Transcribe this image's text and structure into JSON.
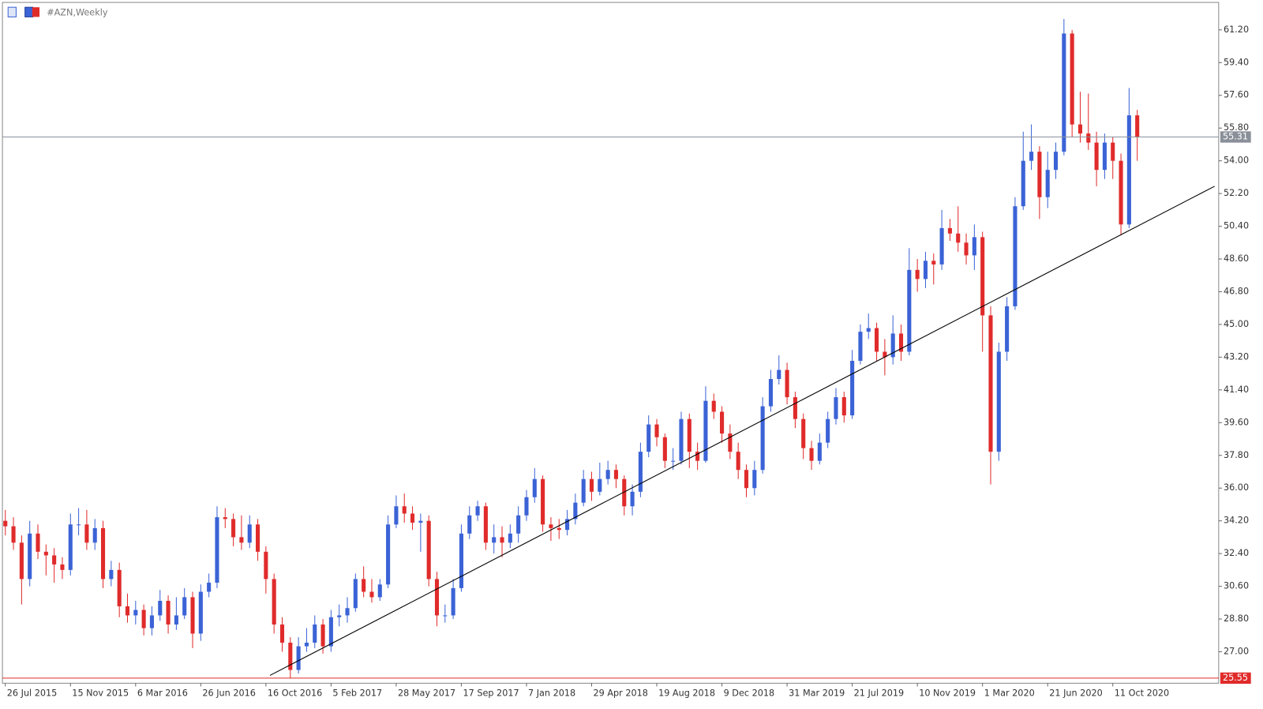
{
  "chart_data": {
    "type": "candlestick",
    "title": "#AZN,Weekly",
    "up_color": "#3b63d6",
    "down_color": "#e02b2b",
    "x": [
      "2015-07-26",
      "2015-08-09",
      "2015-08-23",
      "2015-09-06",
      "2015-09-20",
      "2015-10-04",
      "2015-10-18",
      "2015-11-01",
      "2015-11-15",
      "2015-11-29",
      "2015-12-13",
      "2015-12-27",
      "2016-01-10",
      "2016-01-24",
      "2016-02-07",
      "2016-02-21",
      "2016-03-06",
      "2016-03-20",
      "2016-04-03",
      "2016-04-17",
      "2016-05-01",
      "2016-05-15",
      "2016-05-29",
      "2016-06-12",
      "2016-06-26",
      "2016-07-10",
      "2016-07-24",
      "2016-08-07",
      "2016-08-21",
      "2016-09-04",
      "2016-09-18",
      "2016-10-02",
      "2016-10-16",
      "2016-10-30",
      "2016-11-13",
      "2016-11-27",
      "2016-12-11",
      "2016-12-25",
      "2017-01-08",
      "2017-01-22",
      "2017-02-05",
      "2017-02-19",
      "2017-03-05",
      "2017-03-19",
      "2017-04-02",
      "2017-04-16",
      "2017-04-30",
      "2017-05-14",
      "2017-05-28",
      "2017-06-11",
      "2017-06-25",
      "2017-07-09",
      "2017-07-23",
      "2017-08-06",
      "2017-08-20",
      "2017-09-03",
      "2017-09-17",
      "2017-10-01",
      "2017-10-15",
      "2017-10-29",
      "2017-11-12",
      "2017-11-26",
      "2017-12-10",
      "2017-12-24",
      "2018-01-07",
      "2018-01-21",
      "2018-02-04",
      "2018-02-18",
      "2018-03-04",
      "2018-03-18",
      "2018-04-01",
      "2018-04-15",
      "2018-04-29",
      "2018-05-13",
      "2018-05-27",
      "2018-06-10",
      "2018-06-24",
      "2018-07-08",
      "2018-07-22",
      "2018-08-05",
      "2018-08-19",
      "2018-09-02",
      "2018-09-16",
      "2018-09-30",
      "2018-10-14",
      "2018-10-28",
      "2018-11-11",
      "2018-11-25",
      "2018-12-09",
      "2018-12-23",
      "2019-01-06",
      "2019-01-20",
      "2019-02-03",
      "2019-02-17",
      "2019-03-03",
      "2019-03-17",
      "2019-03-31",
      "2019-04-14",
      "2019-04-28",
      "2019-05-12",
      "2019-05-26",
      "2019-06-09",
      "2019-06-23",
      "2019-07-07",
      "2019-07-21",
      "2019-08-04",
      "2019-08-18",
      "2019-09-01",
      "2019-09-15",
      "2019-09-29",
      "2019-10-13",
      "2019-10-27",
      "2019-11-10",
      "2019-11-24",
      "2019-12-08",
      "2019-12-22",
      "2020-01-05",
      "2020-01-19",
      "2020-02-02",
      "2020-02-16",
      "2020-03-01",
      "2020-03-15",
      "2020-03-29",
      "2020-04-12",
      "2020-04-26",
      "2020-05-10",
      "2020-05-24",
      "2020-06-07",
      "2020-06-21",
      "2020-07-05",
      "2020-07-19",
      "2020-08-02",
      "2020-08-16",
      "2020-08-30",
      "2020-09-13",
      "2020-09-27",
      "2020-10-11",
      "2020-10-25",
      "2020-11-08",
      "2020-11-22"
    ],
    "open": [
      34.2,
      33.9,
      33.0,
      31.0,
      33.5,
      32.5,
      32.3,
      31.8,
      31.5,
      34.0,
      34.0,
      33.0,
      33.8,
      31.0,
      31.5,
      29.5,
      29.0,
      29.3,
      28.3,
      29.0,
      29.8,
      28.5,
      29.0,
      30.0,
      28.0,
      30.3,
      30.8,
      34.4,
      34.3,
      33.3,
      33.0,
      34.0,
      32.5,
      31.0,
      28.5,
      27.5,
      26.0,
      27.3,
      27.5,
      28.5,
      27.3,
      28.9,
      29.0,
      29.4,
      31.0,
      30.3,
      30.0,
      30.7,
      34.0,
      35.0,
      34.6,
      34.1,
      34.2,
      31.0,
      29.0,
      29.0,
      30.5,
      33.5,
      34.5,
      35.0,
      33.0,
      33.3,
      33.0,
      33.5,
      34.5,
      35.5,
      36.5,
      34.0,
      33.8,
      33.7,
      34.3,
      35.2,
      36.5,
      35.8,
      36.5,
      37.0,
      36.5,
      35.0,
      35.8,
      38.0,
      39.5,
      38.8,
      37.5,
      37.5,
      39.8,
      38.0,
      37.5,
      40.8,
      40.2,
      39.0,
      38.0,
      37.0,
      36.0,
      37.0,
      40.5,
      42.0,
      42.5,
      41.0,
      39.8,
      38.2,
      37.5,
      38.5,
      39.8,
      41.0,
      40.0,
      43.0,
      44.6,
      44.8,
      43.5,
      43.2,
      44.5,
      43.5,
      48.0,
      47.5,
      48.5,
      48.3,
      50.3,
      50.0,
      49.5,
      48.8,
      49.8,
      45.5,
      38.0,
      43.5,
      46.0,
      51.5,
      54.0,
      54.5,
      52.0,
      53.5,
      54.5,
      61.0,
      56.0,
      55.5,
      55.0,
      53.5,
      55.0,
      54.0,
      50.5,
      56.5
    ],
    "high": [
      34.8,
      34.4,
      33.4,
      34.2,
      34.0,
      32.9,
      32.7,
      32.2,
      34.6,
      34.9,
      34.8,
      34.3,
      34.2,
      32.0,
      31.9,
      30.2,
      29.8,
      29.6,
      29.5,
      30.4,
      30.1,
      30.0,
      30.5,
      30.3,
      30.7,
      31.3,
      35.0,
      34.9,
      34.6,
      34.5,
      34.5,
      34.3,
      32.8,
      31.3,
      28.9,
      27.8,
      27.8,
      28.3,
      29.0,
      28.8,
      29.3,
      29.6,
      30.0,
      31.3,
      31.7,
      31.0,
      31.0,
      34.5,
      35.6,
      35.7,
      35.0,
      34.6,
      34.5,
      31.4,
      29.6,
      31.0,
      34.0,
      35.0,
      35.3,
      35.2,
      34.0,
      33.9,
      34.0,
      35.0,
      35.9,
      37.1,
      36.7,
      34.4,
      34.3,
      34.8,
      35.7,
      37.0,
      36.9,
      37.4,
      37.5,
      37.3,
      36.7,
      36.2,
      38.5,
      40.0,
      39.8,
      39.0,
      38.2,
      40.2,
      40.1,
      38.5,
      41.6,
      41.2,
      40.5,
      39.5,
      38.5,
      37.3,
      37.5,
      41.0,
      42.5,
      43.3,
      42.9,
      41.3,
      40.1,
      38.6,
      39.0,
      40.2,
      41.5,
      41.3,
      43.6,
      45.0,
      45.6,
      45.1,
      44.2,
      45.5,
      45.0,
      49.2,
      48.6,
      49.0,
      48.9,
      51.3,
      50.8,
      51.5,
      50.0,
      50.5,
      50.1,
      46.0,
      44.0,
      46.5,
      52.0,
      55.6,
      56.0,
      54.8,
      54.5,
      55.0,
      61.8,
      61.2,
      57.8,
      57.7,
      55.6,
      55.5,
      55.3,
      54.4,
      58.0,
      56.8
    ],
    "low": [
      33.4,
      32.6,
      29.6,
      30.6,
      32.1,
      31.2,
      30.8,
      31.0,
      31.2,
      33.4,
      32.6,
      32.6,
      30.5,
      30.6,
      28.9,
      28.6,
      28.5,
      27.9,
      27.9,
      28.7,
      28.0,
      28.2,
      28.8,
      27.2,
      27.6,
      30.0,
      30.5,
      33.8,
      32.8,
      32.6,
      32.7,
      32.0,
      30.2,
      28.0,
      27.0,
      25.55,
      25.8,
      27.0,
      27.2,
      26.9,
      27.0,
      28.4,
      28.6,
      29.2,
      30.0,
      29.7,
      29.8,
      30.5,
      33.8,
      34.1,
      33.7,
      32.5,
      30.6,
      28.4,
      28.6,
      28.8,
      30.3,
      33.2,
      34.2,
      32.6,
      32.4,
      32.2,
      32.7,
      33.0,
      34.2,
      35.2,
      33.6,
      33.1,
      33.2,
      33.4,
      34.0,
      35.0,
      35.3,
      35.6,
      36.2,
      36.0,
      34.5,
      34.5,
      35.5,
      37.7,
      38.3,
      37.1,
      37.0,
      37.3,
      37.1,
      37.0,
      37.4,
      39.8,
      38.5,
      37.6,
      36.5,
      35.5,
      35.6,
      36.8,
      40.2,
      41.7,
      40.6,
      39.3,
      37.6,
      37.0,
      37.3,
      38.2,
      39.5,
      39.6,
      39.8,
      42.8,
      44.2,
      43.0,
      42.2,
      42.8,
      43.0,
      43.3,
      46.8,
      47.0,
      47.2,
      48.0,
      49.6,
      49.0,
      48.3,
      48.0,
      43.5,
      36.2,
      37.5,
      43.0,
      45.8,
      51.3,
      53.5,
      50.8,
      51.4,
      53.0,
      54.3,
      55.3,
      55.0,
      54.6,
      52.6,
      53.0,
      53.0,
      49.9,
      50.3,
      54.0
    ],
    "close": [
      33.9,
      33.0,
      31.0,
      33.5,
      32.5,
      32.3,
      31.8,
      31.5,
      34.0,
      34.0,
      33.0,
      33.8,
      31.0,
      31.5,
      29.5,
      29.0,
      29.3,
      28.3,
      29.0,
      29.8,
      28.5,
      29.0,
      30.0,
      28.0,
      30.3,
      30.8,
      34.4,
      34.3,
      33.3,
      33.0,
      34.0,
      32.5,
      31.0,
      28.5,
      27.5,
      26.0,
      27.3,
      27.5,
      28.5,
      27.3,
      28.9,
      29.0,
      29.4,
      31.0,
      30.3,
      30.0,
      30.7,
      34.0,
      35.0,
      34.6,
      34.1,
      34.2,
      31.0,
      29.0,
      29.0,
      30.5,
      33.5,
      34.5,
      35.0,
      33.0,
      33.3,
      33.0,
      33.5,
      34.5,
      35.5,
      36.5,
      34.0,
      33.8,
      33.7,
      34.3,
      35.2,
      36.5,
      35.8,
      36.5,
      37.0,
      36.5,
      35.0,
      35.8,
      38.0,
      39.5,
      38.8,
      37.5,
      37.5,
      39.8,
      38.0,
      37.5,
      40.8,
      40.2,
      39.0,
      38.0,
      37.0,
      36.0,
      37.0,
      40.5,
      42.0,
      42.5,
      41.0,
      39.8,
      38.2,
      37.5,
      38.5,
      39.8,
      41.0,
      40.0,
      43.0,
      44.6,
      44.8,
      43.5,
      43.2,
      44.5,
      43.5,
      48.0,
      47.5,
      48.5,
      48.3,
      50.3,
      50.0,
      49.5,
      48.8,
      49.8,
      45.5,
      38.0,
      43.5,
      46.0,
      51.5,
      54.0,
      54.5,
      52.0,
      53.5,
      54.5,
      61.0,
      56.0,
      55.5,
      55.0,
      53.5,
      55.0,
      54.0,
      50.5,
      56.5,
      55.31
    ],
    "xlim": [
      "2015-07-21",
      "2021-04-11"
    ],
    "xticks": [
      {
        "value": "2015-07-26",
        "label": "26 Jul 2015"
      },
      {
        "value": "2015-11-15",
        "label": "15 Nov 2015"
      },
      {
        "value": "2016-03-06",
        "label": "6 Mar 2016"
      },
      {
        "value": "2016-06-26",
        "label": "26 Jun 2016"
      },
      {
        "value": "2016-10-16",
        "label": "16 Oct 2016"
      },
      {
        "value": "2017-02-05",
        "label": "5 Feb 2017"
      },
      {
        "value": "2017-05-28",
        "label": "28 May 2017"
      },
      {
        "value": "2017-09-17",
        "label": "17 Sep 2017"
      },
      {
        "value": "2018-01-07",
        "label": "7 Jan 2018"
      },
      {
        "value": "2018-04-29",
        "label": "29 Apr 2018"
      },
      {
        "value": "2018-08-19",
        "label": "19 Aug 2018"
      },
      {
        "value": "2018-12-09",
        "label": "9 Dec 2018"
      },
      {
        "value": "2019-03-31",
        "label": "31 Mar 2019"
      },
      {
        "value": "2019-07-21",
        "label": "21 Jul 2019"
      },
      {
        "value": "2019-11-10",
        "label": "10 Nov 2019"
      },
      {
        "value": "2020-03-01",
        "label": "1 Mar 2020"
      },
      {
        "value": "2020-06-21",
        "label": "21 Jun 2020"
      },
      {
        "value": "2020-10-11",
        "label": "11 Oct 2020"
      }
    ],
    "ylim": [
      25.27,
      62.71
    ],
    "yticks": [
      {
        "value": 27,
        "label": "27.00"
      },
      {
        "value": 28.8,
        "label": "28.80"
      },
      {
        "value": 30.6,
        "label": "30.60"
      },
      {
        "value": 32.4,
        "label": "32.40"
      },
      {
        "value": 34.2,
        "label": "34.20"
      },
      {
        "value": 36,
        "label": "36.00"
      },
      {
        "value": 37.8,
        "label": "37.80"
      },
      {
        "value": 39.6,
        "label": "39.60"
      },
      {
        "value": 41.4,
        "label": "41.40"
      },
      {
        "value": 43.2,
        "label": "43.20"
      },
      {
        "value": 45,
        "label": "45.00"
      },
      {
        "value": 46.8,
        "label": "46.80"
      },
      {
        "value": 48.6,
        "label": "48.60"
      },
      {
        "value": 50.4,
        "label": "50.40"
      },
      {
        "value": 52.2,
        "label": "52.20"
      },
      {
        "value": 54,
        "label": "54.00"
      },
      {
        "value": 55.8,
        "label": "55.80"
      },
      {
        "value": 57.6,
        "label": "57.60"
      },
      {
        "value": 59.4,
        "label": "59.40"
      },
      {
        "value": 61.2,
        "label": "61.20"
      }
    ],
    "current_price": 55.31,
    "current_price_color": "#8a9099",
    "low_line": 25.55,
    "low_line_color": "#e02b2b",
    "trendline": {
      "x": [
        "2016-10-23",
        "2021-04-04"
      ],
      "y": [
        25.7,
        52.6
      ],
      "color": "#000000"
    }
  }
}
